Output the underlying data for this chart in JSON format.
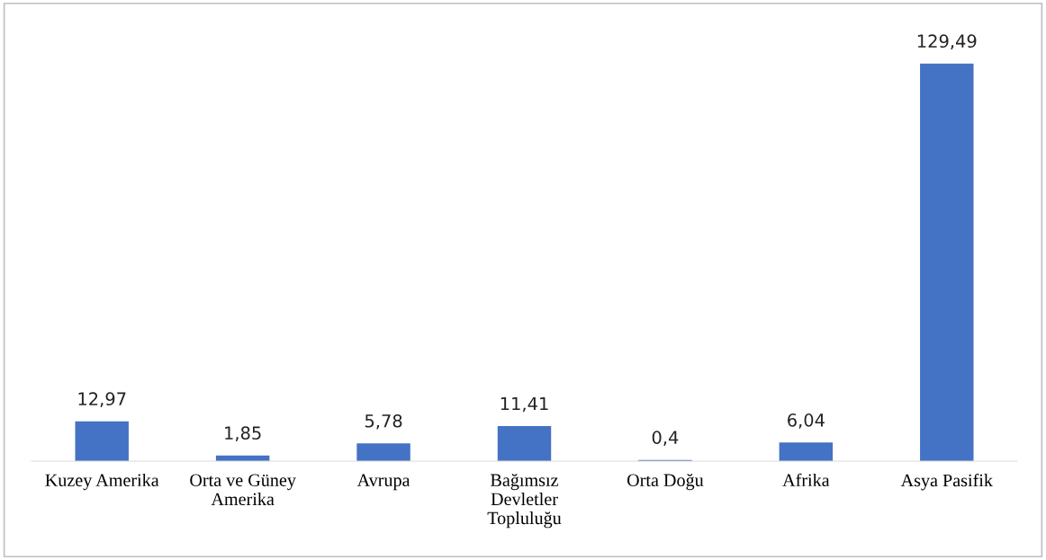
{
  "chart_data": {
    "type": "bar",
    "categories": [
      "Kuzey Amerika",
      "Orta ve Güney\nAmerika",
      "Avrupa",
      "Bağımsız\nDevletler\nTopluluğu",
      "Orta Doğu",
      "Afrika",
      "Asya Pasifik"
    ],
    "values": [
      12.97,
      1.85,
      5.78,
      11.41,
      0.4,
      6.04,
      129.49
    ],
    "value_labels": [
      "12,97",
      "1,85",
      "5,78",
      "11,41",
      "0,4",
      "6,04",
      "129,49"
    ],
    "color": "#4472c4",
    "grid": false,
    "legend": false
  }
}
